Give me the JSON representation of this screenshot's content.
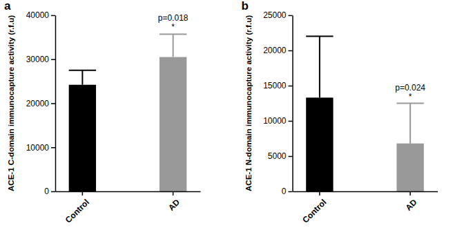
{
  "chart_data": [
    {
      "type": "bar",
      "title": "a",
      "y_label": "ACE-1 C-domain immunocapture activity (r.f.u)",
      "categories": [
        "Control",
        "AD"
      ],
      "values": [
        24200,
        30500
      ],
      "errors": [
        3300,
        5200
      ],
      "colors": [
        "#000000",
        "#999999"
      ],
      "ylim": [
        0,
        40000
      ],
      "yticks": [
        0,
        10000,
        20000,
        30000,
        40000
      ],
      "annotations": [
        "p=0.018",
        "*"
      ]
    },
    {
      "type": "bar",
      "title": "b",
      "y_label": "ACE-1 N-domain immunocapture activity (r.f.u)",
      "categories": [
        "Control",
        "AD"
      ],
      "values": [
        13300,
        6800
      ],
      "errors": [
        8700,
        5700
      ],
      "colors": [
        "#000000",
        "#999999"
      ],
      "ylim": [
        0,
        25000
      ],
      "yticks": [
        0,
        5000,
        10000,
        15000,
        20000,
        25000
      ],
      "annotations": [
        "p=0.024",
        "*"
      ]
    }
  ]
}
